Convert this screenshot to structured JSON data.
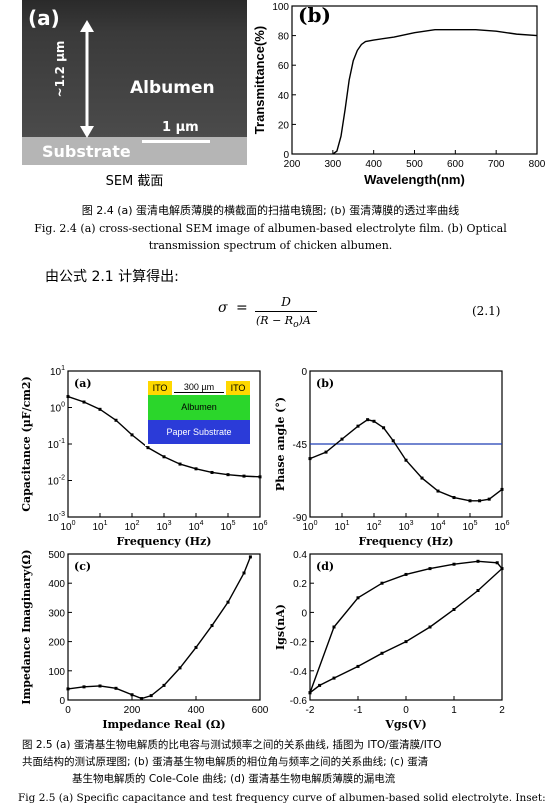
{
  "fig24": {
    "panel_a": {
      "label": "(a)",
      "thickness": "~1.2 µm",
      "layer_top": "Albumen",
      "layer_bottom": "Substrate",
      "scale_bar": "1 µm",
      "caption": "SEM 截面"
    },
    "caption_cn": "图 2.4 (a) 蛋清电解质薄膜的横截面的扫描电镜图; (b) 蛋清薄膜的透过率曲线",
    "caption_en_1": "Fig. 2.4 (a) cross-sectional SEM image of albumen-based electrolyte film. (b) Optical",
    "caption_en_2": "transmission spectrum of chicken albumen."
  },
  "formula_intro": "由公式 2.1 计算得出:",
  "equation": {
    "lhs": "σ",
    "eq": "=",
    "numerator": "D",
    "denominator": "(R − R",
    "denominator_sub": "o",
    "denominator_end": ")A",
    "number": "(2.1)"
  },
  "fig25": {
    "inset": {
      "ito_left": "ITO",
      "ito_right": "ITO",
      "gap": "300 µm",
      "albumen": "Albumen",
      "paper": "Paper Substrate"
    },
    "caption_cn_1": "图 2.5 (a) 蛋清基生物电解质的比电容与测试频率之间的关系曲线, 插图为 ITO/蛋清膜/ITO",
    "caption_cn_2": "共面结构的测试原理图; (b) 蛋清基生物电解质的相位角与频率之间的关系曲线; (c) 蛋清",
    "caption_cn_3": "基生物电解质的 Cole-Cole 曲线; (d) 蛋清基生物电解质薄膜的漏电流",
    "caption_en": "Fig 2.5 (a) Specific capacitance and test frequency curve of albumen-based solid electrolyte. Inset:"
  },
  "colors": {
    "ito": "#ffd800",
    "albumen": "#2bd62b",
    "paper": "#2b3bd8",
    "refline": "#1f3fb5"
  },
  "chart_data": [
    {
      "id": "fig2.4b",
      "type": "line",
      "title": "(b)",
      "xlabel": "Wavelength(nm)",
      "ylabel": "Transmittance(%)",
      "xlim": [
        200,
        800
      ],
      "ylim": [
        0,
        100
      ],
      "xticks": [
        200,
        300,
        400,
        500,
        600,
        700,
        800
      ],
      "yticks": [
        0,
        20,
        40,
        60,
        80,
        100
      ],
      "x": [
        300,
        310,
        320,
        330,
        340,
        350,
        360,
        370,
        380,
        400,
        450,
        500,
        550,
        600,
        650,
        700,
        750,
        800
      ],
      "y": [
        0,
        2,
        12,
        30,
        50,
        63,
        70,
        74,
        76,
        77,
        79,
        82,
        84,
        84,
        84,
        83,
        81,
        80
      ]
    },
    {
      "id": "fig2.5a",
      "type": "line",
      "title": "(a)",
      "xlabel": "Frequency (Hz)",
      "ylabel": "Capacitance (µF/cm2)",
      "xscale": "log",
      "yscale": "log",
      "xticks": [
        "10^0",
        "10^1",
        "10^2",
        "10^3",
        "10^4",
        "10^5",
        "10^6"
      ],
      "yticks": [
        "10^-3",
        "10^-2",
        "10^-1",
        "10^0",
        "10^1"
      ],
      "x_log": [
        0,
        0.5,
        1,
        1.5,
        2,
        2.5,
        3,
        3.5,
        4,
        4.5,
        5,
        5.5,
        6
      ],
      "y_log": [
        0.3,
        0.15,
        -0.05,
        -0.35,
        -0.75,
        -1.1,
        -1.35,
        -1.55,
        -1.68,
        -1.78,
        -1.84,
        -1.88,
        -1.9
      ]
    },
    {
      "id": "fig2.5b",
      "type": "line",
      "title": "(b)",
      "xlabel": "Frequency (Hz)",
      "ylabel": "Phase angle (°)",
      "xscale": "log",
      "xticks": [
        "10^0",
        "10^1",
        "10^2",
        "10^3",
        "10^4",
        "10^5",
        "10^6"
      ],
      "ylim": [
        -90,
        0
      ],
      "yticks": [
        -90,
        -45,
        0
      ],
      "reference_line": -45,
      "x_log": [
        0,
        0.5,
        1,
        1.5,
        1.8,
        2,
        2.3,
        2.6,
        3,
        3.5,
        4,
        4.5,
        5,
        5.3,
        5.6,
        6
      ],
      "y": [
        -54,
        -50,
        -42,
        -34,
        -30,
        -31,
        -35,
        -43,
        -55,
        -66,
        -74,
        -78,
        -80,
        -80,
        -79,
        -73
      ]
    },
    {
      "id": "fig2.5c",
      "type": "line",
      "title": "(c)",
      "xlabel": "Impedance Real (Ω)",
      "ylabel": "Impedance Imaginary(Ω)",
      "xlim": [
        0,
        600
      ],
      "ylim": [
        0,
        500
      ],
      "xticks": [
        0,
        200,
        400,
        600
      ],
      "yticks": [
        0,
        100,
        200,
        300,
        400,
        500
      ],
      "x": [
        0,
        50,
        100,
        150,
        200,
        230,
        260,
        300,
        350,
        400,
        450,
        500,
        550,
        570
      ],
      "y": [
        38,
        45,
        48,
        40,
        18,
        5,
        15,
        50,
        110,
        180,
        255,
        335,
        435,
        490
      ]
    },
    {
      "id": "fig2.5d",
      "type": "line",
      "title": "(d)",
      "xlabel": "Vgs(V)",
      "ylabel": "Igs(nA)",
      "xlim": [
        -2,
        2
      ],
      "ylim": [
        -0.6,
        0.4
      ],
      "xticks": [
        -2,
        -1,
        0,
        1,
        2
      ],
      "yticks": [
        -0.6,
        -0.4,
        -0.2,
        0.0,
        0.2,
        0.4
      ],
      "x": [
        -2,
        -1.8,
        -1.5,
        -1,
        -0.5,
        0,
        0.5,
        1,
        1.5,
        2,
        1.9,
        1.5,
        1,
        0.5,
        0,
        -0.5,
        -1,
        -1.5,
        -2
      ],
      "y": [
        -0.55,
        -0.5,
        -0.45,
        -0.37,
        -0.28,
        -0.2,
        -0.1,
        0.02,
        0.15,
        0.3,
        0.34,
        0.35,
        0.33,
        0.3,
        0.26,
        0.2,
        0.1,
        -0.1,
        -0.55
      ]
    }
  ]
}
